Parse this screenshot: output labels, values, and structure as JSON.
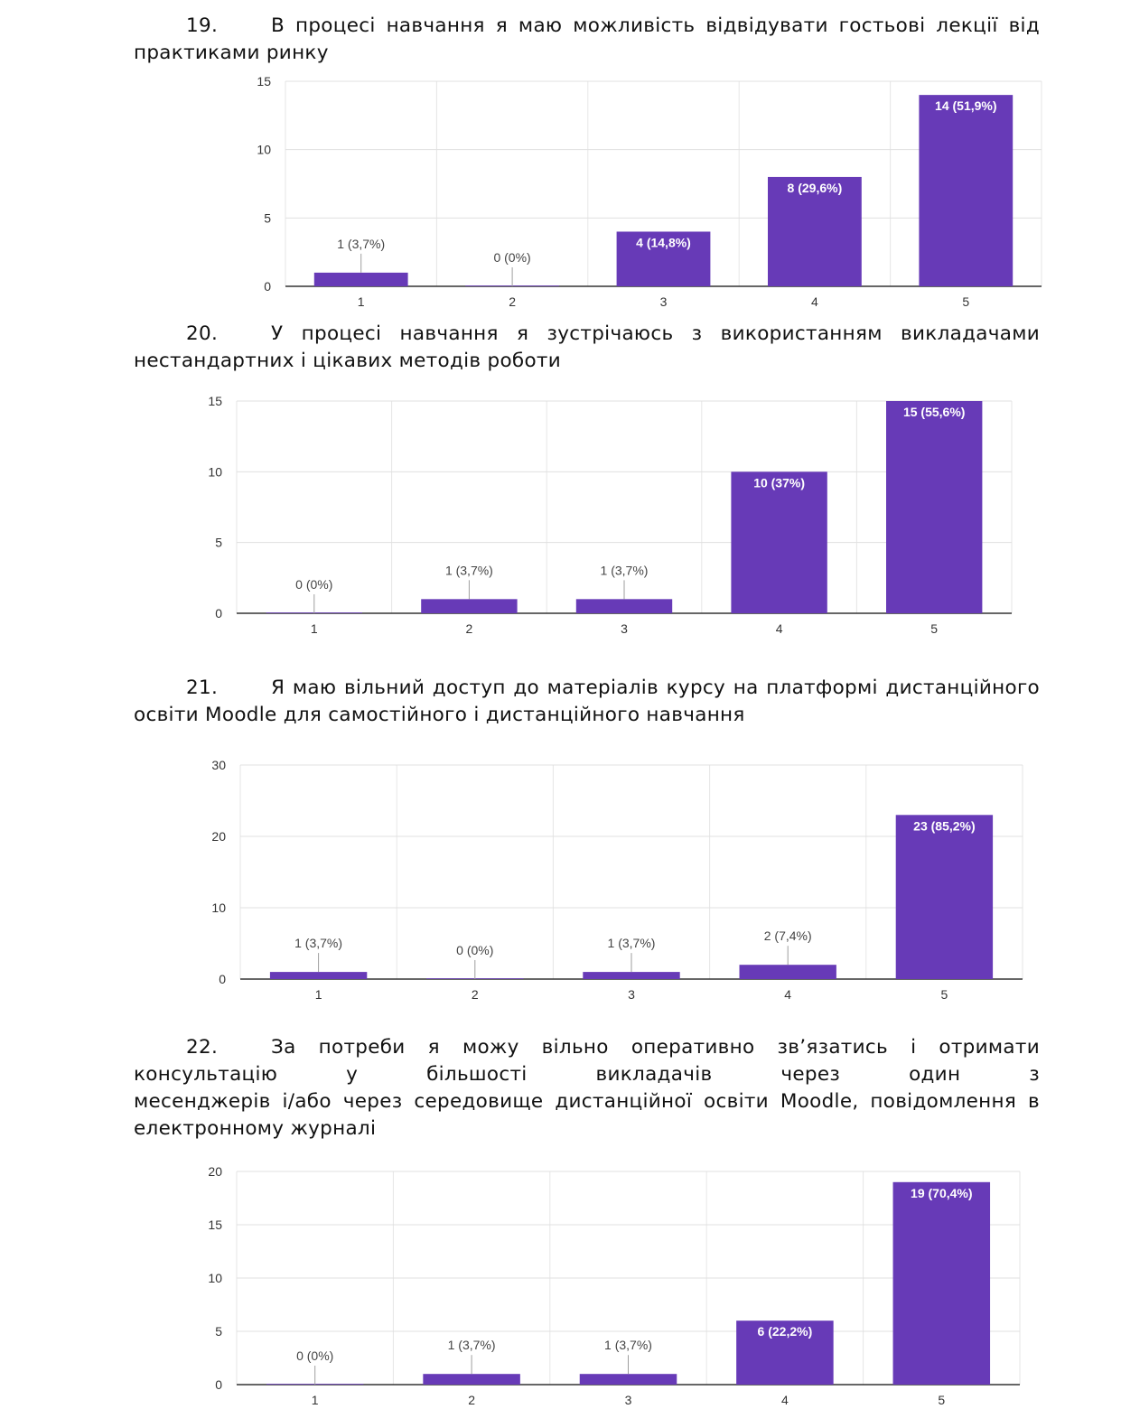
{
  "questions": [
    {
      "number": "19.",
      "line1": "В процесі навчання я маю можливість відвідувати гостьові лекції від",
      "rest": "практиками ринку"
    },
    {
      "number": "20.",
      "line1": "У процесі навчання я зустрічаюсь з використанням викладачами",
      "rest": "нестандартних і цікавих методів роботи"
    },
    {
      "number": "21.",
      "line1": "Я маю вільний доступ до матеріалів курсу на платформі дистанційного",
      "rest": "освіти Moodle для самостійного і дистанційного навчання"
    },
    {
      "number": "22.",
      "line1": "За потреби я можу вільно оперативно зв’язатись і отримати",
      "line2": "консультацію у більшості викладачів через один з",
      "line3": "месенджерів і/або через середовище дистанційної освіти Moodle, повідомлення в",
      "rest": "електронному журналі"
    }
  ],
  "chart_data": [
    {
      "type": "bar",
      "title": "19",
      "categories": [
        "1",
        "2",
        "3",
        "4",
        "5"
      ],
      "values": [
        1,
        0,
        4,
        8,
        14
      ],
      "labels": [
        "1 (3,7%)",
        "0 (0%)",
        "4 (14,8%)",
        "8 (29,6%)",
        "14 (51,9%)"
      ],
      "yticks": [
        0,
        5,
        10,
        15
      ],
      "ylim": [
        0,
        15
      ],
      "color": "#673ab7"
    },
    {
      "type": "bar",
      "title": "20",
      "categories": [
        "1",
        "2",
        "3",
        "4",
        "5"
      ],
      "values": [
        0,
        1,
        1,
        10,
        15
      ],
      "labels": [
        "0 (0%)",
        "1 (3,7%)",
        "1 (3,7%)",
        "10 (37%)",
        "15 (55,6%)"
      ],
      "yticks": [
        0,
        5,
        10,
        15
      ],
      "ylim": [
        0,
        15
      ],
      "color": "#673ab7"
    },
    {
      "type": "bar",
      "title": "21",
      "categories": [
        "1",
        "2",
        "3",
        "4",
        "5"
      ],
      "values": [
        1,
        0,
        1,
        2,
        23
      ],
      "labels": [
        "1 (3,7%)",
        "0 (0%)",
        "1 (3,7%)",
        "2 (7,4%)",
        "23 (85,2%)"
      ],
      "yticks": [
        0,
        10,
        20,
        30
      ],
      "ylim": [
        0,
        30
      ],
      "color": "#673ab7"
    },
    {
      "type": "bar",
      "title": "22",
      "categories": [
        "1",
        "2",
        "3",
        "4",
        "5"
      ],
      "values": [
        0,
        1,
        1,
        6,
        19
      ],
      "labels": [
        "0 (0%)",
        "1 (3,7%)",
        "1 (3,7%)",
        "6 (22,2%)",
        "19 (70,4%)"
      ],
      "yticks": [
        0,
        5,
        10,
        15,
        20
      ],
      "ylim": [
        0,
        20
      ],
      "color": "#673ab7"
    }
  ]
}
